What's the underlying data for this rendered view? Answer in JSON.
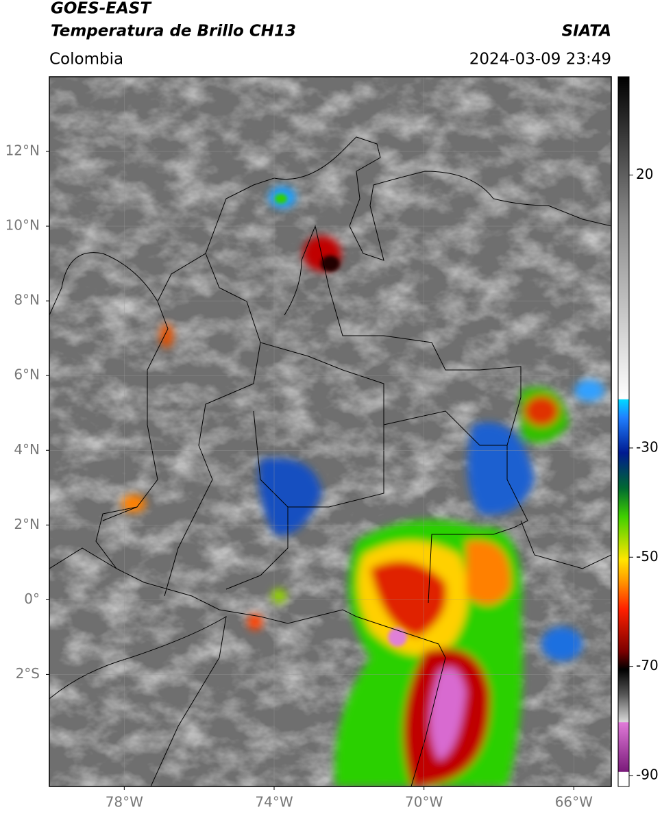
{
  "header": {
    "title_lines": [
      "GOES-EAST",
      "Temperatura de Brillo CH13"
    ],
    "source": "SIATA",
    "region": "Colombia",
    "datetime": "2024-03-09 23:49"
  },
  "map": {
    "lon_range": [
      -80,
      -65
    ],
    "lat_range": [
      -5,
      14
    ],
    "lat_ticks": [
      {
        "value": 12,
        "label": "12°N"
      },
      {
        "value": 10,
        "label": "10°N"
      },
      {
        "value": 8,
        "label": "8°N"
      },
      {
        "value": 6,
        "label": "6°N"
      },
      {
        "value": 4,
        "label": "4°N"
      },
      {
        "value": 2,
        "label": "2°N"
      },
      {
        "value": 0,
        "label": "0°"
      },
      {
        "value": -2,
        "label": "2°S"
      }
    ],
    "lon_ticks": [
      {
        "value": -78,
        "label": "78°W"
      },
      {
        "value": -74,
        "label": "74°W"
      },
      {
        "value": -70,
        "label": "70°W"
      },
      {
        "value": -66,
        "label": "66°W"
      }
    ]
  },
  "colorbar": {
    "range": [
      -92,
      38
    ],
    "ticks": [
      20,
      -30,
      -50,
      -70,
      -90
    ]
  }
}
